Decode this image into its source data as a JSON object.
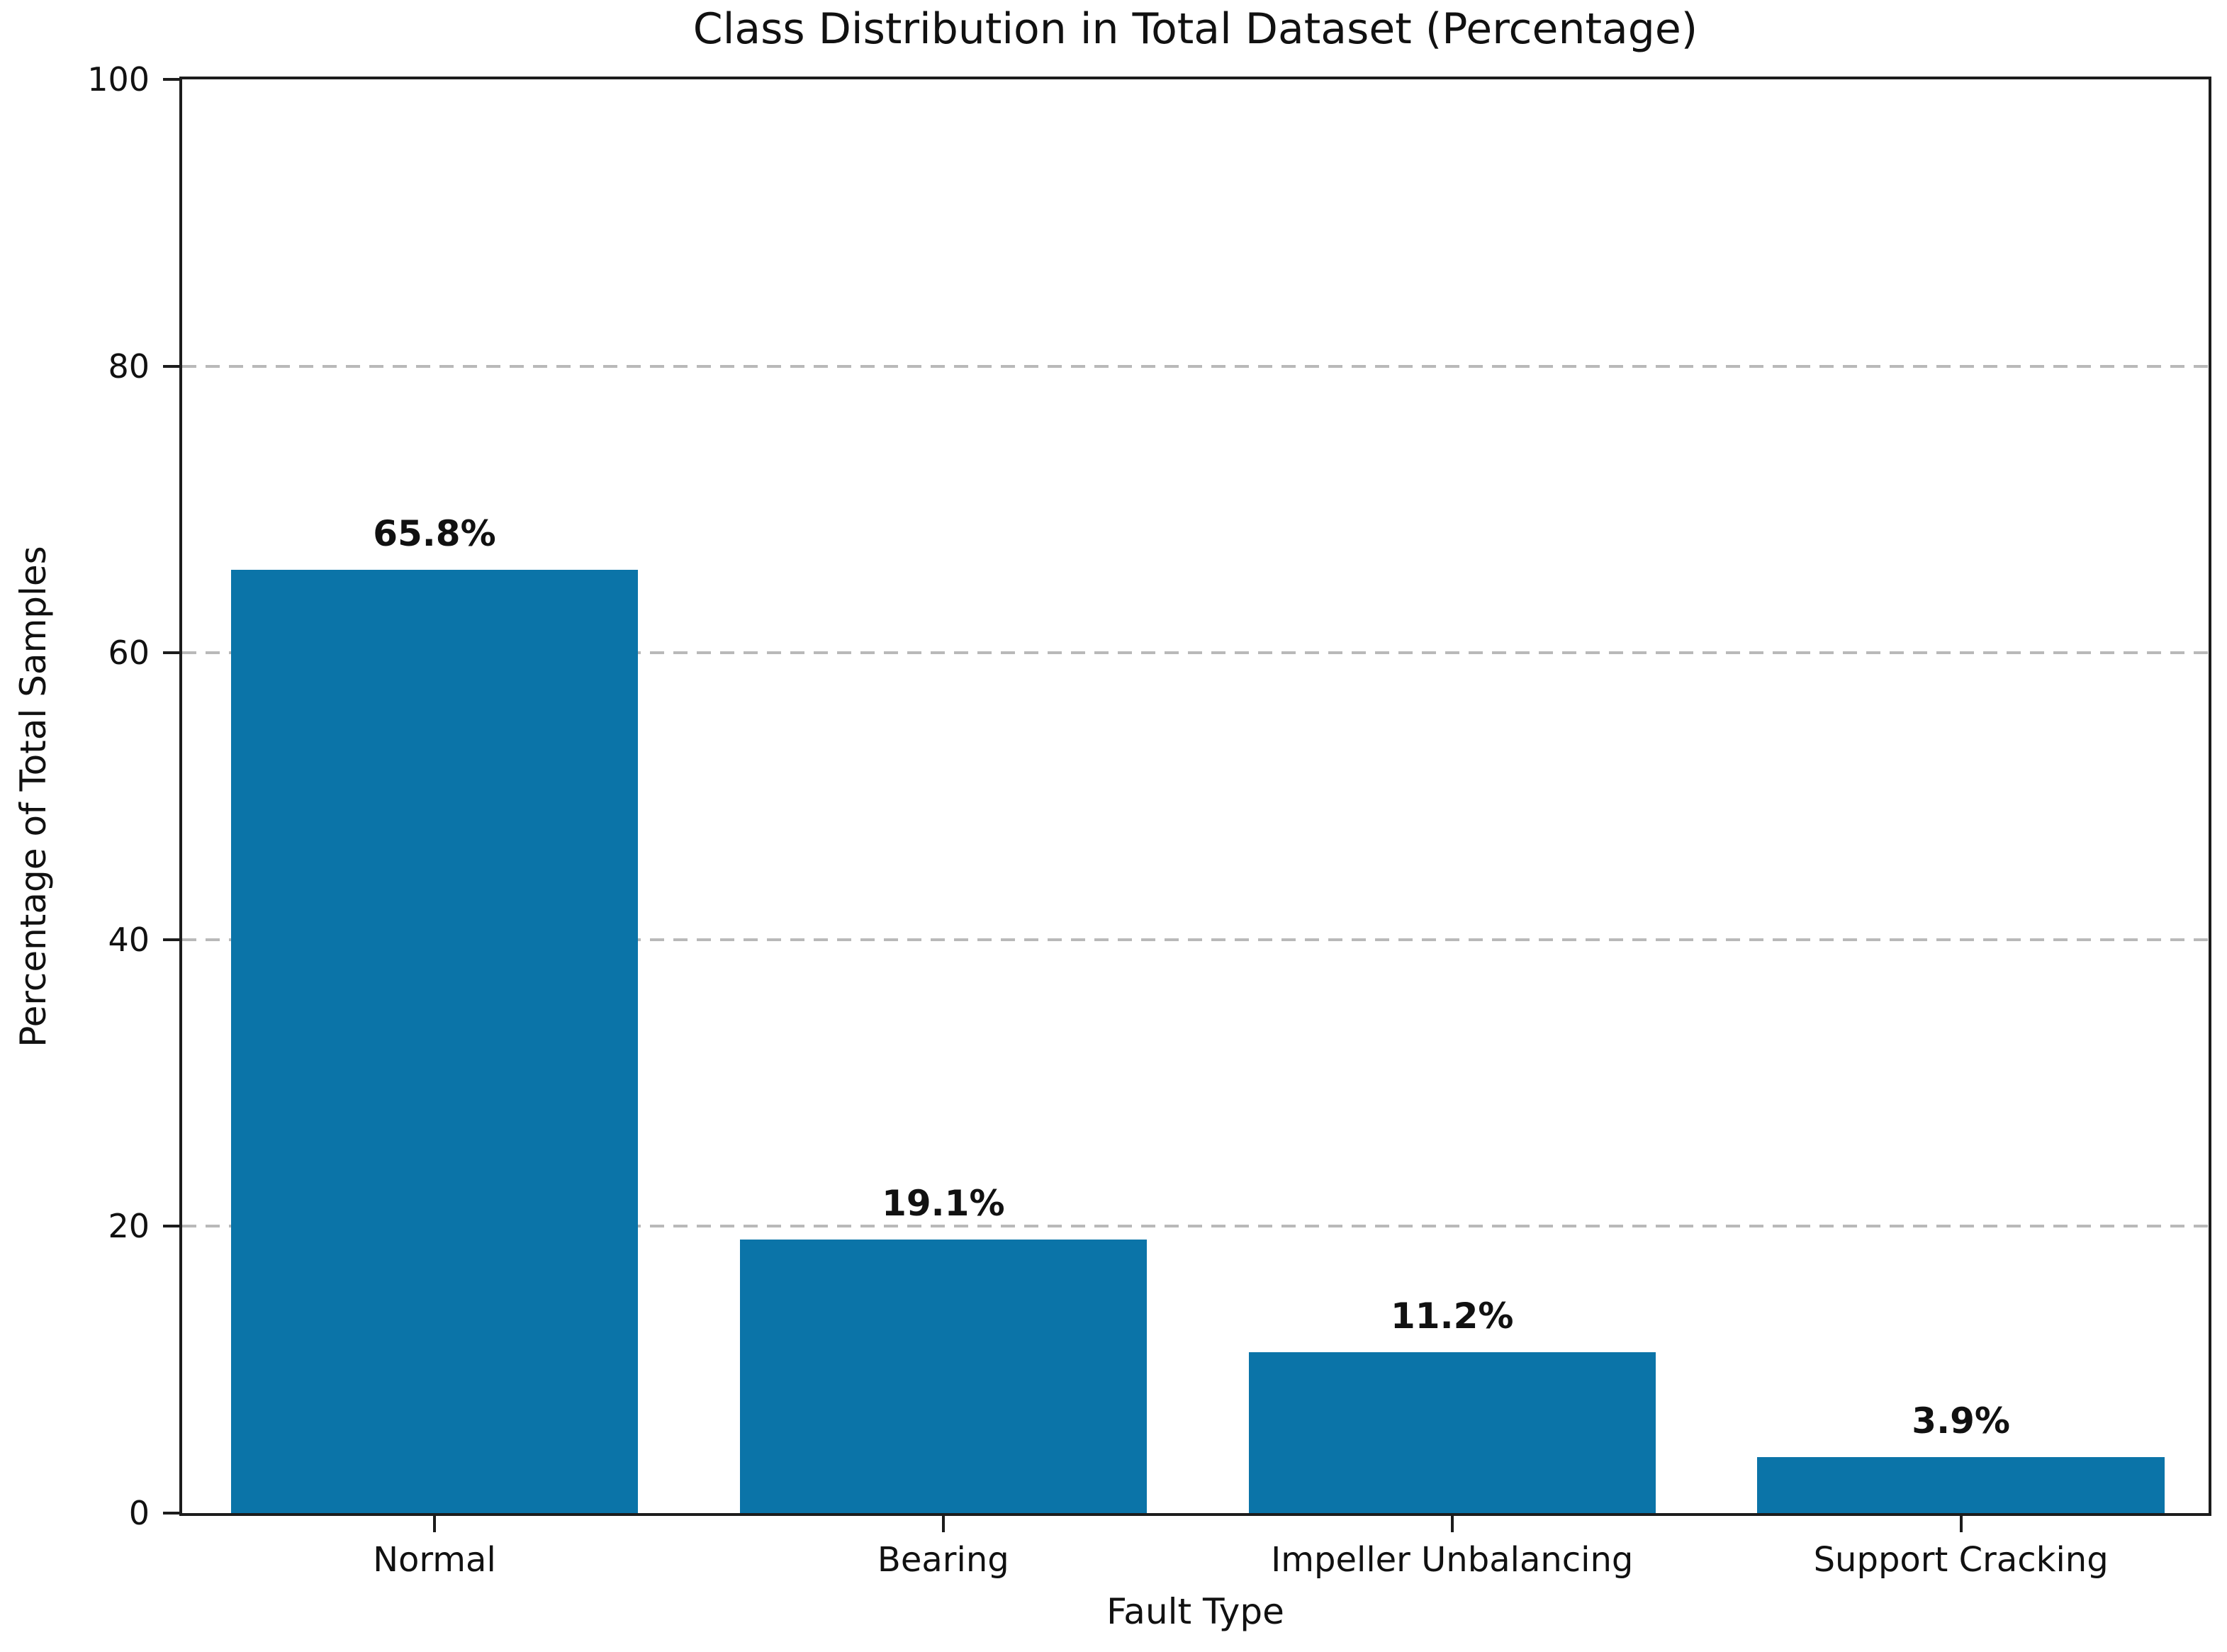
{
  "chart_data": {
    "type": "bar",
    "title": "Class Distribution in Total Dataset (Percentage)",
    "xlabel": "Fault Type",
    "ylabel": "Percentage of Total Samples",
    "categories": [
      "Normal",
      "Bearing",
      "Impeller Unbalancing",
      "Support Cracking"
    ],
    "values": [
      65.8,
      19.1,
      11.2,
      3.9
    ],
    "bar_labels": [
      "65.8%",
      "19.1%",
      "11.2%",
      "3.9%"
    ],
    "yticks": [
      0,
      20,
      40,
      60,
      80,
      100
    ],
    "ylim": [
      0,
      100
    ],
    "grid": "horizontal-dashed",
    "legend": "none",
    "colors": {
      "bar": "#0b74a8",
      "grid": "#b9b9b9",
      "axis": "#1c1c1c",
      "text": "#111111",
      "background": "#ffffff"
    }
  }
}
